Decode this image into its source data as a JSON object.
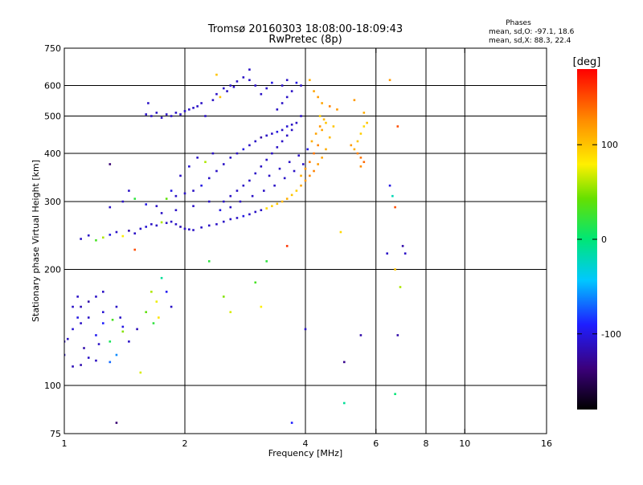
{
  "chart_data": {
    "type": "scatter",
    "title": "Tromsø 20160303 18:08:00-18:09:43",
    "subtitle": "RwPretec (8p)",
    "xlabel": "Frequency [MHz]",
    "ylabel": "Stationary phase Virtual Height [km]",
    "x_scale": "log2",
    "y_scale": "log",
    "xlim": [
      1,
      16
    ],
    "ylim": [
      75,
      750
    ],
    "x_ticks": [
      1,
      2,
      4,
      6,
      8,
      10,
      16
    ],
    "y_ticks": [
      75,
      100,
      200,
      300,
      400,
      500,
      600,
      750
    ],
    "x_gridlines": [
      2,
      4,
      6,
      8,
      10
    ],
    "y_gridlines": [
      100,
      200,
      300,
      400,
      500,
      600
    ],
    "grid": true,
    "stats": {
      "title": "Phases",
      "o_mode": "mean, sd,O: -97.1, 18.6",
      "x_mode": "mean, sd,X:  88.3, 22.4"
    },
    "colorbar": {
      "label": "[deg]",
      "min": -180,
      "max": 180,
      "ticks": [
        100,
        0,
        -100
      ]
    },
    "points": [
      [
        1.02,
        132,
        -110
      ],
      [
        1.05,
        140,
        -105
      ],
      [
        1.08,
        150,
        -100
      ],
      [
        1.1,
        160,
        -115
      ],
      [
        1.12,
        125,
        -120
      ],
      [
        1.15,
        118,
        -110
      ],
      [
        1.2,
        135,
        -95
      ],
      [
        1.25,
        145,
        -90
      ],
      [
        1.3,
        130,
        10
      ],
      [
        1.35,
        120,
        -60
      ],
      [
        1.4,
        142,
        -100
      ],
      [
        1.05,
        112,
        -115
      ],
      [
        1.1,
        113,
        -118
      ],
      [
        1.2,
        116,
        -112
      ],
      [
        1.3,
        115,
        -70
      ],
      [
        1.08,
        170,
        -110
      ],
      [
        1.15,
        165,
        -120
      ],
      [
        1.25,
        155,
        -105
      ],
      [
        1.32,
        148,
        30
      ],
      [
        1.4,
        138,
        50
      ],
      [
        1.45,
        130,
        -110
      ],
      [
        1.52,
        140,
        -115
      ],
      [
        1.6,
        155,
        40
      ],
      [
        1.65,
        175,
        60
      ],
      [
        1.7,
        165,
        75
      ],
      [
        1.75,
        190,
        -10
      ],
      [
        1.8,
        175,
        -95
      ],
      [
        1.85,
        160,
        -110
      ],
      [
        1.72,
        150,
        85
      ],
      [
        1.67,
        145,
        20
      ],
      [
        1.1,
        240,
        -110
      ],
      [
        1.15,
        245,
        -110
      ],
      [
        1.2,
        238,
        30
      ],
      [
        1.25,
        242,
        60
      ],
      [
        1.3,
        246,
        -100
      ],
      [
        1.35,
        250,
        -110
      ],
      [
        1.4,
        244,
        80
      ],
      [
        1.45,
        252,
        -120
      ],
      [
        1.5,
        248,
        -110
      ],
      [
        1.55,
        255,
        -110
      ],
      [
        1.6,
        258,
        -105
      ],
      [
        1.65,
        262,
        -110
      ],
      [
        1.7,
        260,
        -110
      ],
      [
        1.75,
        265,
        60
      ],
      [
        1.8,
        264,
        -110
      ],
      [
        1.85,
        266,
        -110
      ],
      [
        1.9,
        262,
        -110
      ],
      [
        1.95,
        258,
        -115
      ],
      [
        2.0,
        255,
        -110
      ],
      [
        2.05,
        254,
        -110
      ],
      [
        2.1,
        253,
        -110
      ],
      [
        2.2,
        257,
        -110
      ],
      [
        2.3,
        260,
        -110
      ],
      [
        2.4,
        262,
        -110
      ],
      [
        2.5,
        266,
        -110
      ],
      [
        2.6,
        270,
        -110
      ],
      [
        2.7,
        272,
        -110
      ],
      [
        2.8,
        275,
        -100
      ],
      [
        2.9,
        278,
        -110
      ],
      [
        3.0,
        282,
        -110
      ],
      [
        3.1,
        285,
        -110
      ],
      [
        3.2,
        288,
        90
      ],
      [
        3.3,
        292,
        95
      ],
      [
        3.4,
        296,
        100
      ],
      [
        3.5,
        300,
        105
      ],
      [
        3.6,
        305,
        110
      ],
      [
        3.7,
        312,
        100
      ],
      [
        3.8,
        320,
        95
      ],
      [
        3.9,
        330,
        115
      ],
      [
        4.0,
        340,
        120
      ],
      [
        4.1,
        350,
        125
      ],
      [
        4.2,
        360,
        130
      ],
      [
        4.3,
        375,
        120
      ],
      [
        4.4,
        390,
        115
      ],
      [
        4.5,
        410,
        110
      ],
      [
        4.6,
        440,
        105
      ],
      [
        4.7,
        470,
        100
      ],
      [
        4.5,
        480,
        100
      ],
      [
        4.35,
        500,
        95
      ],
      [
        4.4,
        460,
        115
      ],
      [
        4.3,
        420,
        130
      ],
      [
        4.2,
        400,
        135
      ],
      [
        4.1,
        380,
        130
      ],
      [
        4.0,
        365,
        120
      ],
      [
        3.9,
        350,
        110
      ],
      [
        1.3,
        290,
        -110
      ],
      [
        1.4,
        300,
        -110
      ],
      [
        1.5,
        305,
        20
      ],
      [
        1.6,
        295,
        -100
      ],
      [
        1.7,
        292,
        -110
      ],
      [
        1.8,
        305,
        40
      ],
      [
        1.9,
        310,
        -110
      ],
      [
        2.0,
        315,
        -110
      ],
      [
        2.1,
        320,
        -110
      ],
      [
        2.2,
        330,
        -100
      ],
      [
        2.3,
        345,
        -110
      ],
      [
        2.4,
        360,
        -110
      ],
      [
        2.5,
        375,
        -110
      ],
      [
        2.6,
        390,
        -110
      ],
      [
        2.7,
        400,
        -110
      ],
      [
        2.8,
        410,
        -100
      ],
      [
        2.9,
        420,
        -110
      ],
      [
        3.0,
        430,
        -110
      ],
      [
        3.1,
        440,
        -120
      ],
      [
        3.2,
        445,
        -110
      ],
      [
        3.3,
        450,
        -110
      ],
      [
        3.4,
        455,
        -100
      ],
      [
        3.5,
        460,
        -110
      ],
      [
        3.6,
        470,
        -105
      ],
      [
        3.7,
        475,
        -110
      ],
      [
        2.5,
        300,
        -110
      ],
      [
        2.6,
        310,
        -110
      ],
      [
        2.7,
        320,
        -110
      ],
      [
        2.8,
        330,
        -110
      ],
      [
        2.9,
        340,
        -110
      ],
      [
        3.0,
        355,
        -110
      ],
      [
        3.1,
        370,
        -110
      ],
      [
        3.2,
        385,
        -110
      ],
      [
        3.3,
        400,
        -110
      ],
      [
        3.4,
        415,
        -110
      ],
      [
        3.5,
        430,
        -110
      ],
      [
        3.6,
        445,
        -110
      ],
      [
        3.7,
        460,
        -110
      ],
      [
        3.8,
        480,
        -110
      ],
      [
        3.9,
        500,
        -110
      ],
      [
        3.4,
        520,
        -110
      ],
      [
        3.5,
        540,
        -110
      ],
      [
        3.6,
        560,
        -110
      ],
      [
        3.7,
        580,
        -110
      ],
      [
        3.5,
        600,
        -110
      ],
      [
        3.6,
        620,
        -110
      ],
      [
        3.3,
        610,
        -100
      ],
      [
        3.2,
        590,
        -110
      ],
      [
        3.1,
        570,
        -110
      ],
      [
        3.0,
        600,
        -110
      ],
      [
        2.9,
        620,
        -110
      ],
      [
        2.8,
        630,
        -110
      ],
      [
        2.7,
        615,
        -110
      ],
      [
        2.6,
        600,
        -110
      ],
      [
        2.5,
        590,
        -110
      ],
      [
        2.4,
        570,
        -110
      ],
      [
        2.35,
        550,
        -110
      ],
      [
        2.45,
        560,
        100
      ],
      [
        2.55,
        580,
        -110
      ],
      [
        2.65,
        595,
        -110
      ],
      [
        1.6,
        505,
        -110
      ],
      [
        1.65,
        500,
        -110
      ],
      [
        1.7,
        510,
        -110
      ],
      [
        1.75,
        495,
        -110
      ],
      [
        1.8,
        505,
        -110
      ],
      [
        1.85,
        500,
        -110
      ],
      [
        1.9,
        510,
        -110
      ],
      [
        1.95,
        505,
        -110
      ],
      [
        2.0,
        515,
        -110
      ],
      [
        2.05,
        520,
        -110
      ],
      [
        2.1,
        525,
        -110
      ],
      [
        2.15,
        530,
        -110
      ],
      [
        2.2,
        540,
        -110
      ],
      [
        1.62,
        540,
        -110
      ],
      [
        2.25,
        500,
        -110
      ],
      [
        2.4,
        640,
        100
      ],
      [
        2.9,
        660,
        -110
      ],
      [
        3.8,
        610,
        -100
      ],
      [
        3.9,
        600,
        -110
      ],
      [
        4.1,
        620,
        110
      ],
      [
        4.2,
        580,
        115
      ],
      [
        4.3,
        560,
        120
      ],
      [
        4.4,
        540,
        115
      ],
      [
        4.6,
        530,
        130
      ],
      [
        4.8,
        520,
        120
      ],
      [
        5.2,
        420,
        120
      ],
      [
        5.4,
        400,
        130
      ],
      [
        5.5,
        390,
        135
      ],
      [
        5.6,
        380,
        140
      ],
      [
        5.5,
        370,
        125
      ],
      [
        5.3,
        410,
        110
      ],
      [
        5.4,
        430,
        100
      ],
      [
        5.5,
        450,
        95
      ],
      [
        5.6,
        470,
        90
      ],
      [
        5.7,
        480,
        100
      ],
      [
        5.3,
        550,
        120
      ],
      [
        5.6,
        510,
        110
      ],
      [
        6.5,
        330,
        -100
      ],
      [
        6.6,
        310,
        -20
      ],
      [
        6.7,
        290,
        150
      ],
      [
        6.4,
        220,
        -110
      ],
      [
        6.7,
        200,
        100
      ],
      [
        7.0,
        230,
        -120
      ],
      [
        7.1,
        220,
        -110
      ],
      [
        6.9,
        180,
        60
      ],
      [
        3.0,
        185,
        30
      ],
      [
        3.1,
        160,
        80
      ],
      [
        3.2,
        210,
        20
      ],
      [
        2.6,
        155,
        70
      ],
      [
        2.5,
        170,
        50
      ],
      [
        4.9,
        250,
        90
      ],
      [
        5.0,
        115,
        -130
      ],
      [
        5.5,
        135,
        -120
      ],
      [
        6.8,
        135,
        -120
      ],
      [
        5.0,
        90,
        -10
      ],
      [
        6.7,
        95,
        0
      ],
      [
        3.7,
        80,
        -90
      ],
      [
        1.35,
        80,
        -140
      ],
      [
        1.3,
        375,
        -140
      ],
      [
        1.5,
        225,
        150
      ],
      [
        1.55,
        108,
        70
      ],
      [
        2.3,
        210,
        20
      ],
      [
        4.0,
        140,
        -110
      ],
      [
        3.6,
        230,
        160
      ],
      [
        6.5,
        620,
        120
      ],
      [
        6.8,
        470,
        150
      ],
      [
        1.45,
        320,
        -110
      ],
      [
        1.85,
        320,
        -100
      ],
      [
        1.95,
        350,
        -110
      ],
      [
        2.05,
        370,
        -105
      ],
      [
        2.15,
        390,
        -110
      ],
      [
        2.25,
        380,
        60
      ],
      [
        2.35,
        400,
        -110
      ],
      [
        1.75,
        280,
        -110
      ],
      [
        1.9,
        285,
        -110
      ],
      [
        2.1,
        292,
        -110
      ],
      [
        2.3,
        300,
        -110
      ],
      [
        2.45,
        285,
        -100
      ],
      [
        2.6,
        290,
        -110
      ],
      [
        2.75,
        300,
        -110
      ],
      [
        2.95,
        310,
        -110
      ],
      [
        3.15,
        320,
        -110
      ],
      [
        3.35,
        330,
        -110
      ],
      [
        3.55,
        345,
        -110
      ],
      [
        3.75,
        360,
        -110
      ],
      [
        3.95,
        375,
        -110
      ],
      [
        3.25,
        350,
        -110
      ],
      [
        3.45,
        365,
        -110
      ],
      [
        3.65,
        380,
        -110
      ],
      [
        3.85,
        395,
        -110
      ],
      [
        4.05,
        410,
        -100
      ],
      [
        4.15,
        430,
        110
      ],
      [
        4.25,
        450,
        115
      ],
      [
        4.35,
        470,
        120
      ],
      [
        4.45,
        490,
        105
      ],
      [
        1.2,
        170,
        -110
      ],
      [
        1.25,
        175,
        -110
      ],
      [
        1.05,
        160,
        -110
      ],
      [
        1.15,
        150,
        -110
      ],
      [
        1.35,
        160,
        -110
      ],
      [
        1.1,
        145,
        -110
      ],
      [
        1.0,
        120,
        -110
      ],
      [
        1.0,
        130,
        -110
      ],
      [
        1.22,
        128,
        -110
      ],
      [
        1.38,
        150,
        -110
      ]
    ]
  }
}
